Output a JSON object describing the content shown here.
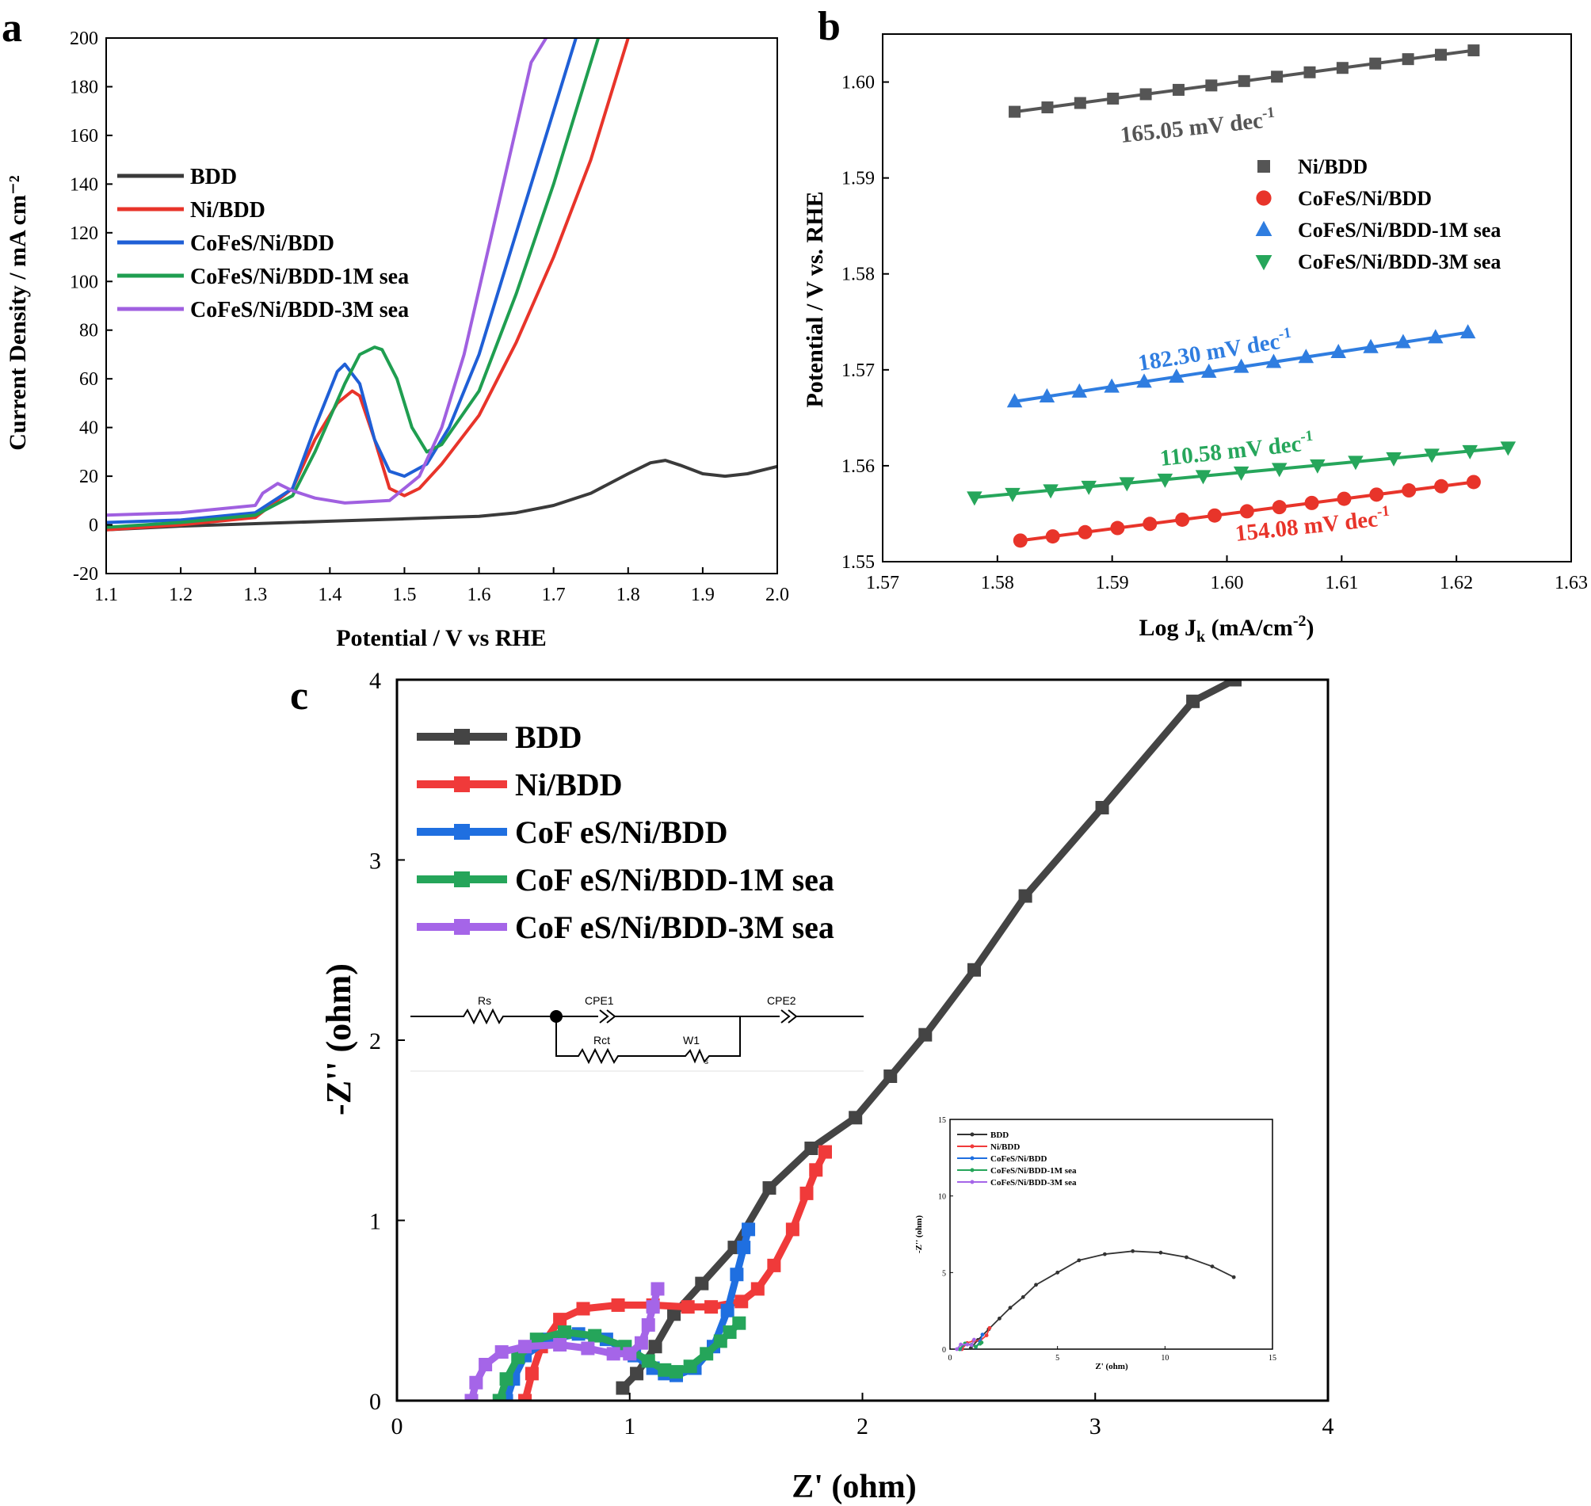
{
  "chart_data": [
    {
      "panel": "a",
      "type": "line",
      "xlabel": "Potential / V vs RHE",
      "ylabel": "Current Density / mA cm⁻²",
      "xlim": [
        1.1,
        2.0
      ],
      "ylim": [
        -20,
        200
      ],
      "xticks": [
        1.1,
        1.2,
        1.3,
        1.4,
        1.5,
        1.6,
        1.7,
        1.8,
        1.9,
        2.0
      ],
      "yticks": [
        -20,
        0,
        20,
        40,
        60,
        80,
        100,
        120,
        140,
        160,
        180,
        200
      ],
      "legend_position": "left",
      "series": [
        {
          "name": "BDD",
          "color": "#3a3a3a",
          "x": [
            1.1,
            1.2,
            1.3,
            1.4,
            1.5,
            1.55,
            1.6,
            1.65,
            1.7,
            1.75,
            1.8,
            1.83,
            1.85,
            1.87,
            1.9,
            1.93,
            1.96,
            2.0
          ],
          "y": [
            -2,
            -0.5,
            0.5,
            1.5,
            2.5,
            3.0,
            3.5,
            5.0,
            8.0,
            13.0,
            21.0,
            25.5,
            26.5,
            24.5,
            21.0,
            20.0,
            21.0,
            24.0
          ]
        },
        {
          "name": "Ni/BDD",
          "color": "#e8342a",
          "x": [
            1.1,
            1.2,
            1.3,
            1.35,
            1.38,
            1.41,
            1.43,
            1.44,
            1.46,
            1.48,
            1.5,
            1.52,
            1.55,
            1.6,
            1.65,
            1.7,
            1.75,
            1.8
          ],
          "y": [
            -2,
            0,
            3,
            15,
            35,
            50,
            55,
            53,
            35,
            15,
            12,
            15,
            25,
            45,
            75,
            110,
            150,
            200
          ]
        },
        {
          "name": "CoFeS/Ni/BDD",
          "color": "#1f5fd6",
          "x": [
            1.1,
            1.2,
            1.3,
            1.35,
            1.38,
            1.41,
            1.42,
            1.44,
            1.46,
            1.48,
            1.5,
            1.53,
            1.56,
            1.6,
            1.65,
            1.7,
            1.73
          ],
          "y": [
            1,
            2,
            5,
            15,
            40,
            63,
            66,
            58,
            35,
            22,
            20,
            25,
            40,
            70,
            120,
            170,
            200
          ]
        },
        {
          "name": "CoFeS/Ni/BDD-1M sea",
          "color": "#1f9e50",
          "x": [
            1.1,
            1.2,
            1.3,
            1.35,
            1.38,
            1.42,
            1.44,
            1.46,
            1.47,
            1.49,
            1.51,
            1.53,
            1.55,
            1.6,
            1.65,
            1.7,
            1.76
          ],
          "y": [
            -1,
            1,
            4,
            12,
            30,
            58,
            70,
            73,
            72,
            60,
            40,
            30,
            33,
            55,
            95,
            140,
            200
          ]
        },
        {
          "name": "CoFeS/Ni/BDD-3M sea",
          "color": "#a060e0",
          "x": [
            1.1,
            1.2,
            1.3,
            1.31,
            1.33,
            1.35,
            1.38,
            1.42,
            1.48,
            1.52,
            1.55,
            1.58,
            1.61,
            1.64,
            1.67,
            1.69
          ],
          "y": [
            4,
            5,
            8,
            13,
            17,
            14,
            11,
            9,
            10,
            20,
            40,
            70,
            110,
            150,
            190,
            200
          ]
        }
      ]
    },
    {
      "panel": "b",
      "type": "scatter",
      "xlabel": "Log J",
      "xlabel_sub": "k",
      "xlabel_unit": " (mA/cm",
      "xlabel_sup": "-2",
      "xlabel_end": ")",
      "ylabel": "Potential / V vs. RHE",
      "xlim": [
        1.57,
        1.63
      ],
      "ylim": [
        1.55,
        1.605
      ],
      "xticks": [
        1.57,
        1.58,
        1.59,
        1.6,
        1.61,
        1.62,
        1.63
      ],
      "yticks": [
        1.55,
        1.56,
        1.57,
        1.58,
        1.59,
        1.6
      ],
      "legend_position": "right",
      "series": [
        {
          "name": "Ni/BDD",
          "color": "#555555",
          "marker": "square",
          "x_start": 1.5815,
          "x_end": 1.6215,
          "y_start": 1.5969,
          "y_end": 1.6033,
          "n": 15,
          "slope_label": "165.05 mV dec",
          "slope_sup": "-1"
        },
        {
          "name": "CoFeS/Ni/BDD",
          "color": "#e8342a",
          "marker": "circle",
          "x_start": 1.582,
          "x_end": 1.6215,
          "y_start": 1.5522,
          "y_end": 1.5583,
          "n": 15,
          "slope_label": "154.08 mV dec",
          "slope_sup": "-1"
        },
        {
          "name": "CoFeS/Ni/BDD-1M sea",
          "color": "#2f7de0",
          "marker": "triangle-up",
          "x_start": 1.5815,
          "x_end": 1.621,
          "y_start": 1.5667,
          "y_end": 1.5739,
          "n": 15,
          "slope_label": "182.30 mV dec",
          "slope_sup": "-1"
        },
        {
          "name": "CoFeS/Ni/BDD-3M sea",
          "color": "#26a65b",
          "marker": "triangle-down",
          "x_start": 1.578,
          "x_end": 1.6245,
          "y_start": 1.5567,
          "y_end": 1.5619,
          "n": 15,
          "slope_label": "110.58 mV dec",
          "slope_sup": "-1"
        }
      ]
    },
    {
      "panel": "c",
      "type": "line",
      "xlabel": "Z' (ohm)",
      "ylabel": "-Z'' (ohm)",
      "xlim": [
        0,
        4
      ],
      "ylim": [
        0,
        4
      ],
      "xticks": [
        0,
        1,
        2,
        3,
        4
      ],
      "yticks": [
        0,
        1,
        2,
        3,
        4
      ],
      "legend_position": "top-left",
      "series": [
        {
          "name": "BDD",
          "color": "#444444",
          "marker": "square",
          "x": [
            0.97,
            1.03,
            1.11,
            1.19,
            1.31,
            1.45,
            1.6,
            1.78,
            1.97,
            2.12,
            2.27,
            2.48,
            2.7,
            3.03,
            3.42,
            3.6
          ],
          "y": [
            0.07,
            0.15,
            0.3,
            0.48,
            0.65,
            0.85,
            1.18,
            1.4,
            1.57,
            1.8,
            2.03,
            2.39,
            2.8,
            3.29,
            3.88,
            4.0
          ]
        },
        {
          "name": "Ni/BDD",
          "color": "#f03a3a",
          "marker": "square",
          "x": [
            0.55,
            0.58,
            0.62,
            0.7,
            0.8,
            0.95,
            1.1,
            1.25,
            1.35,
            1.48,
            1.55,
            1.62,
            1.7,
            1.76,
            1.8,
            1.84
          ],
          "y": [
            0.0,
            0.15,
            0.3,
            0.45,
            0.51,
            0.53,
            0.53,
            0.52,
            0.52,
            0.55,
            0.62,
            0.75,
            0.95,
            1.15,
            1.28,
            1.38
          ]
        },
        {
          "name": "CoFeS/Ni/BDD",
          "color": "#1f6fe0",
          "marker": "square",
          "x": [
            0.47,
            0.5,
            0.55,
            0.65,
            0.78,
            0.9,
            1.02,
            1.1,
            1.15,
            1.2,
            1.28,
            1.36,
            1.42,
            1.46,
            1.49,
            1.51
          ],
          "y": [
            0.0,
            0.12,
            0.25,
            0.34,
            0.37,
            0.34,
            0.25,
            0.18,
            0.15,
            0.14,
            0.18,
            0.3,
            0.5,
            0.7,
            0.85,
            0.95
          ]
        },
        {
          "name": "CoFeS/Ni/BDD-1M sea",
          "color": "#25a55a",
          "marker": "square",
          "x": [
            0.44,
            0.47,
            0.52,
            0.6,
            0.72,
            0.85,
            0.98,
            1.08,
            1.15,
            1.2,
            1.26,
            1.33,
            1.39,
            1.43,
            1.47
          ],
          "y": [
            0.0,
            0.12,
            0.24,
            0.34,
            0.38,
            0.36,
            0.3,
            0.22,
            0.17,
            0.16,
            0.19,
            0.26,
            0.33,
            0.38,
            0.43
          ]
        },
        {
          "name": "CoFeS/Ni/BDD-3M sea",
          "color": "#a565e8",
          "marker": "square",
          "x": [
            0.32,
            0.34,
            0.38,
            0.45,
            0.55,
            0.7,
            0.82,
            0.93,
            1.0,
            1.05,
            1.08,
            1.1,
            1.12
          ],
          "y": [
            0.0,
            0.1,
            0.2,
            0.27,
            0.3,
            0.31,
            0.29,
            0.26,
            0.26,
            0.32,
            0.42,
            0.52,
            0.62
          ]
        }
      ],
      "circuit": {
        "labels": [
          "Rs",
          "CPE1",
          "CPE2",
          "Rct",
          "W1"
        ],
        "sub": "s"
      },
      "inset": {
        "xlabel": "Z' (ohm)",
        "ylabel": "-Z'' (ohm)",
        "xlim": [
          0,
          15
        ],
        "ylim": [
          0,
          15
        ],
        "xticks": [
          0,
          5,
          10,
          15
        ],
        "yticks": [
          0,
          5,
          10,
          15
        ],
        "series": [
          {
            "name": "BDD",
            "color": "#333333",
            "x": [
              0.97,
              1.3,
              1.8,
              2.3,
              2.8,
              3.4,
              4.0,
              5.0,
              6.0,
              7.2,
              8.5,
              9.8,
              11.0,
              12.2,
              13.2
            ],
            "y": [
              0.07,
              0.6,
              1.3,
              2.0,
              2.7,
              3.4,
              4.2,
              5.0,
              5.8,
              6.2,
              6.4,
              6.3,
              6.0,
              5.4,
              4.7
            ]
          },
          {
            "name": "Ni/BDD",
            "color": "#f03a3a",
            "x": [
              0.55,
              0.8,
              1.1,
              1.4,
              1.7,
              1.84
            ],
            "y": [
              0.0,
              0.4,
              0.55,
              0.55,
              0.9,
              1.38
            ]
          },
          {
            "name": "CoFeS/Ni/BDD",
            "color": "#1f6fe0",
            "x": [
              0.47,
              0.7,
              1.0,
              1.2,
              1.4,
              1.51
            ],
            "y": [
              0.0,
              0.36,
              0.28,
              0.14,
              0.5,
              0.95
            ]
          },
          {
            "name": "CoFeS/Ni/BDD-1M sea",
            "color": "#25a55a",
            "x": [
              0.44,
              0.7,
              1.0,
              1.2,
              1.4,
              1.47
            ],
            "y": [
              0.0,
              0.37,
              0.28,
              0.16,
              0.35,
              0.43
            ]
          },
          {
            "name": "CoFeS/Ni/BDD-3M sea",
            "color": "#a565e8",
            "x": [
              0.32,
              0.5,
              0.8,
              1.0,
              1.12
            ],
            "y": [
              0.0,
              0.3,
              0.3,
              0.26,
              0.62
            ]
          }
        ]
      }
    }
  ],
  "panel_labels": [
    "a",
    "b",
    "c"
  ],
  "c_legend_text": [
    "BDD",
    "Ni/BDD",
    "CoF eS/Ni/BDD",
    "CoF eS/Ni/BDD-1M sea",
    "CoF eS/Ni/BDD-3M sea"
  ]
}
